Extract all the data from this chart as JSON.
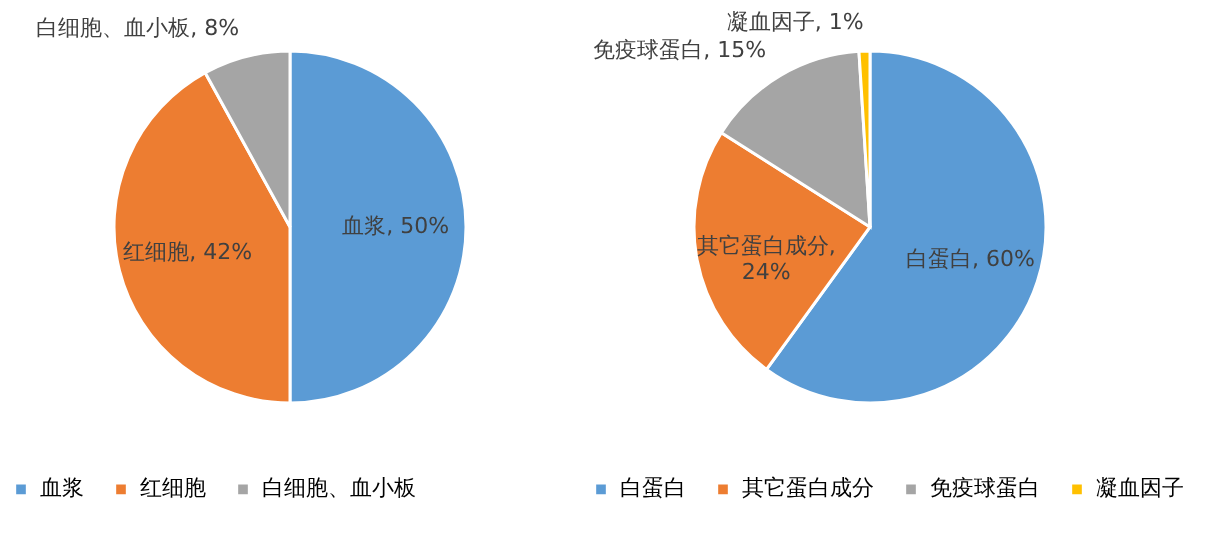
{
  "chart_data": [
    {
      "type": "pie",
      "categories": [
        "血浆",
        "红细胞",
        "白细胞、血小板"
      ],
      "values": [
        50,
        42,
        8
      ],
      "colors": [
        "#5b9bd5",
        "#ed7d31",
        "#a5a5a5"
      ],
      "value_labels": [
        "血浆, 50%",
        "红细胞, 42%",
        "白细胞、血小板, 8%"
      ],
      "legend": "bottom"
    },
    {
      "type": "pie",
      "categories": [
        "白蛋白",
        "其它蛋白成分",
        "免疫球蛋白",
        "凝血因子"
      ],
      "values": [
        60,
        24,
        15,
        1
      ],
      "colors": [
        "#5b9bd5",
        "#ed7d31",
        "#a5a5a5",
        "#ffc000"
      ],
      "value_labels": [
        "白蛋白, 60%",
        "其它蛋白成分, 24%",
        "免疫球蛋白, 15%",
        "凝血因子, 1%"
      ],
      "legend": "bottom"
    }
  ]
}
